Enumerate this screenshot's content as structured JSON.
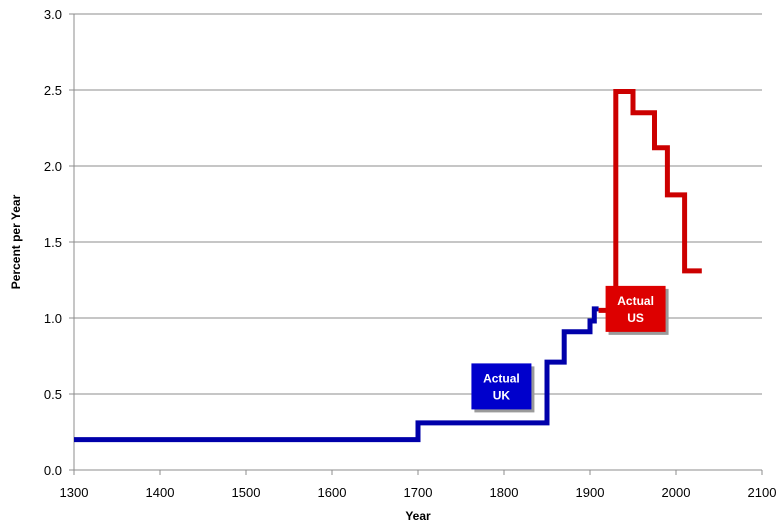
{
  "chart_data": {
    "type": "line",
    "title": "",
    "xlabel": "Year",
    "ylabel": "Percent per Year",
    "xlim": [
      1300,
      2100
    ],
    "ylim": [
      0,
      3.0
    ],
    "x_ticks": [
      1300,
      1400,
      1500,
      1600,
      1700,
      1800,
      1900,
      2000,
      2100
    ],
    "y_ticks": [
      "0.0",
      "0.5",
      "1.0",
      "1.5",
      "2.0",
      "2.5",
      "3.0"
    ],
    "grid": "horizontal",
    "legend": "none",
    "series": [
      {
        "color": "#0000aa",
        "step": true,
        "points": [
          [
            1300,
            0.2
          ],
          [
            1700,
            0.2
          ],
          [
            1700,
            0.31
          ],
          [
            1850,
            0.31
          ],
          [
            1850,
            0.71
          ],
          [
            1870,
            0.71
          ],
          [
            1870,
            0.91
          ],
          [
            1900,
            0.91
          ],
          [
            1900,
            0.98
          ],
          [
            1905,
            0.98
          ],
          [
            1905,
            1.06
          ],
          [
            1910,
            1.06
          ]
        ]
      },
      {
        "color": "#cc0000",
        "step": true,
        "points": [
          [
            1910,
            1.05
          ],
          [
            1930,
            1.05
          ],
          [
            1930,
            2.49
          ],
          [
            1950,
            2.49
          ],
          [
            1950,
            2.35
          ],
          [
            1975,
            2.35
          ],
          [
            1975,
            2.12
          ],
          [
            1990,
            2.12
          ],
          [
            1990,
            1.81
          ],
          [
            2010,
            1.81
          ],
          [
            2010,
            1.31
          ],
          [
            2030,
            1.31
          ]
        ]
      }
    ],
    "annotations": [
      {
        "text": "Actual\nUK",
        "line1": "Actual",
        "line2": "UK",
        "x": 1797,
        "y": 0.55,
        "color": "#0000cc"
      },
      {
        "text": "Actual\nUS",
        "line1": "Actual",
        "line2": "US",
        "x": 1953,
        "y": 1.06,
        "color": "#dd0000"
      }
    ]
  }
}
